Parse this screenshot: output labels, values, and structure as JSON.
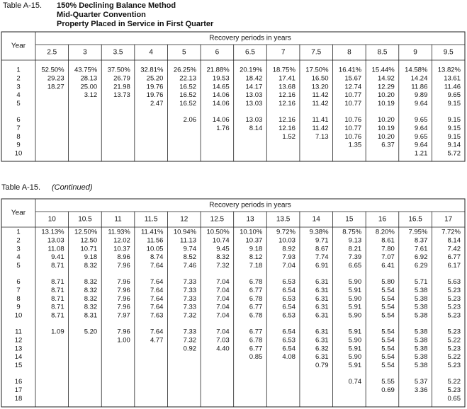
{
  "tables": [
    {
      "label": "Table A-15.",
      "title": [
        "150% Declining Balance Method",
        "Mid-Quarter Convention",
        "Property Placed in Service in First Quarter"
      ],
      "year_header": "Year",
      "group_header": "Recovery periods in years",
      "years": [
        1,
        2,
        3,
        4,
        5,
        6,
        7,
        8,
        9,
        10
      ],
      "columns": [
        {
          "period": 2.5,
          "values": [
            "52.50%",
            "29.23",
            "18.27"
          ]
        },
        {
          "period": 3,
          "values": [
            "43.75%",
            "28.13",
            "25.00",
            "3.12"
          ]
        },
        {
          "period": 3.5,
          "values": [
            "37.50%",
            "26.79",
            "21.98",
            "13.73"
          ]
        },
        {
          "period": 4,
          "values": [
            "32.81%",
            "25.20",
            "19.76",
            "19.76",
            "2.47"
          ]
        },
        {
          "period": 5,
          "values": [
            "26.25%",
            "22.13",
            "16.52",
            "16.52",
            "16.52",
            "2.06"
          ]
        },
        {
          "period": 6,
          "values": [
            "21.88%",
            "19.53",
            "14.65",
            "14.06",
            "14.06",
            "14.06",
            "1.76"
          ]
        },
        {
          "period": 6.5,
          "values": [
            "20.19%",
            "18.42",
            "14.17",
            "13.03",
            "13.03",
            "13.03",
            "8.14"
          ]
        },
        {
          "period": 7,
          "values": [
            "18.75%",
            "17.41",
            "13.68",
            "12.16",
            "12.16",
            "12.16",
            "12.16",
            "1.52"
          ]
        },
        {
          "period": 7.5,
          "values": [
            "17.50%",
            "16.50",
            "13.20",
            "11.42",
            "11.42",
            "11.41",
            "11.42",
            "7.13"
          ]
        },
        {
          "period": 8,
          "values": [
            "16.41%",
            "15.67",
            "12.74",
            "10.77",
            "10.77",
            "10.76",
            "10.77",
            "10.76",
            "1.35"
          ]
        },
        {
          "period": 8.5,
          "values": [
            "15.44%",
            "14.92",
            "12.29",
            "10.20",
            "10.19",
            "10.20",
            "10.19",
            "10.20",
            "6.37"
          ]
        },
        {
          "period": 9,
          "values": [
            "14.58%",
            "14.24",
            "11.86",
            "9.89",
            "9.64",
            "9.65",
            "9.64",
            "9.65",
            "9.64",
            "1.21"
          ]
        },
        {
          "period": 9.5,
          "values": [
            "13.82%",
            "13.61",
            "11.46",
            "9.65",
            "9.15",
            "9.15",
            "9.15",
            "9.15",
            "9.14",
            "5.72"
          ]
        }
      ]
    },
    {
      "label": "Table A-15.",
      "note": "(Continued)",
      "year_header": "Year",
      "group_header": "Recovery periods in years",
      "years": [
        1,
        2,
        3,
        4,
        5,
        6,
        7,
        8,
        9,
        10,
        11,
        12,
        13,
        14,
        15,
        16,
        17,
        18
      ],
      "columns": [
        {
          "period": 10,
          "values": [
            "13.13%",
            "13.03",
            "11.08",
            "9.41",
            "8.71",
            "8.71",
            "8.71",
            "8.71",
            "8.71",
            "8.71",
            "1.09"
          ]
        },
        {
          "period": 10.5,
          "values": [
            "12.50%",
            "12.50",
            "10.71",
            "9.18",
            "8.32",
            "8.32",
            "8.32",
            "8.32",
            "8.32",
            "8.31",
            "5.20"
          ]
        },
        {
          "period": 11,
          "values": [
            "11.93%",
            "12.02",
            "10.37",
            "8.96",
            "7.96",
            "7.96",
            "7.96",
            "7.96",
            "7.96",
            "7.97",
            "7.96",
            "1.00"
          ]
        },
        {
          "period": 11.5,
          "values": [
            "11.41%",
            "11.56",
            "10.05",
            "8.74",
            "7.64",
            "7.64",
            "7.64",
            "7.64",
            "7.64",
            "7.63",
            "7.64",
            "4.77"
          ]
        },
        {
          "period": 12,
          "values": [
            "10.94%",
            "11.13",
            "9.74",
            "8.52",
            "7.46",
            "7.33",
            "7.33",
            "7.33",
            "7.33",
            "7.32",
            "7.33",
            "7.32",
            "0.92"
          ]
        },
        {
          "period": 12.5,
          "values": [
            "10.50%",
            "10.74",
            "9.45",
            "8.32",
            "7.32",
            "7.04",
            "7.04",
            "7.04",
            "7.04",
            "7.04",
            "7.04",
            "7.03",
            "4.40"
          ]
        },
        {
          "period": 13,
          "values": [
            "10.10%",
            "10.37",
            "9.18",
            "8.12",
            "7.18",
            "6.78",
            "6.77",
            "6.78",
            "6.77",
            "6.78",
            "6.77",
            "6.78",
            "6.77",
            "0.85"
          ]
        },
        {
          "period": 13.5,
          "values": [
            "9.72%",
            "10.03",
            "8.92",
            "7.93",
            "7.04",
            "6.53",
            "6.54",
            "6.53",
            "6.54",
            "6.53",
            "6.54",
            "6.53",
            "6.54",
            "4.08"
          ]
        },
        {
          "period": 14,
          "values": [
            "9.38%",
            "9.71",
            "8.67",
            "7.74",
            "6.91",
            "6.31",
            "6.31",
            "6.31",
            "6.31",
            "6.31",
            "6.31",
            "6.31",
            "6.32",
            "6.31",
            "0.79"
          ]
        },
        {
          "period": 15,
          "values": [
            "8.75%",
            "9.13",
            "8.21",
            "7.39",
            "6.65",
            "5.90",
            "5.91",
            "5.90",
            "5.91",
            "5.90",
            "5.91",
            "5.90",
            "5.91",
            "5.90",
            "5.91",
            "0.74"
          ]
        },
        {
          "period": 16,
          "values": [
            "8.20%",
            "8.61",
            "7.80",
            "7.07",
            "6.41",
            "5.80",
            "5.54",
            "5.54",
            "5.54",
            "5.54",
            "5.54",
            "5.54",
            "5.54",
            "5.54",
            "5.54",
            "5.55",
            "0.69"
          ]
        },
        {
          "period": 16.5,
          "values": [
            "7.95%",
            "8.37",
            "7.61",
            "6.92",
            "6.29",
            "5.71",
            "5.38",
            "5.38",
            "5.38",
            "5.38",
            "5.38",
            "5.38",
            "5.38",
            "5.38",
            "5.38",
            "5.37",
            "3.36"
          ]
        },
        {
          "period": 17,
          "values": [
            "7.72%",
            "8.14",
            "7.42",
            "6.77",
            "6.17",
            "5.63",
            "5.23",
            "5.23",
            "5.23",
            "5.23",
            "5.23",
            "5.22",
            "5.23",
            "5.22",
            "5.23",
            "5.22",
            "5.23",
            "0.65"
          ]
        }
      ]
    }
  ]
}
